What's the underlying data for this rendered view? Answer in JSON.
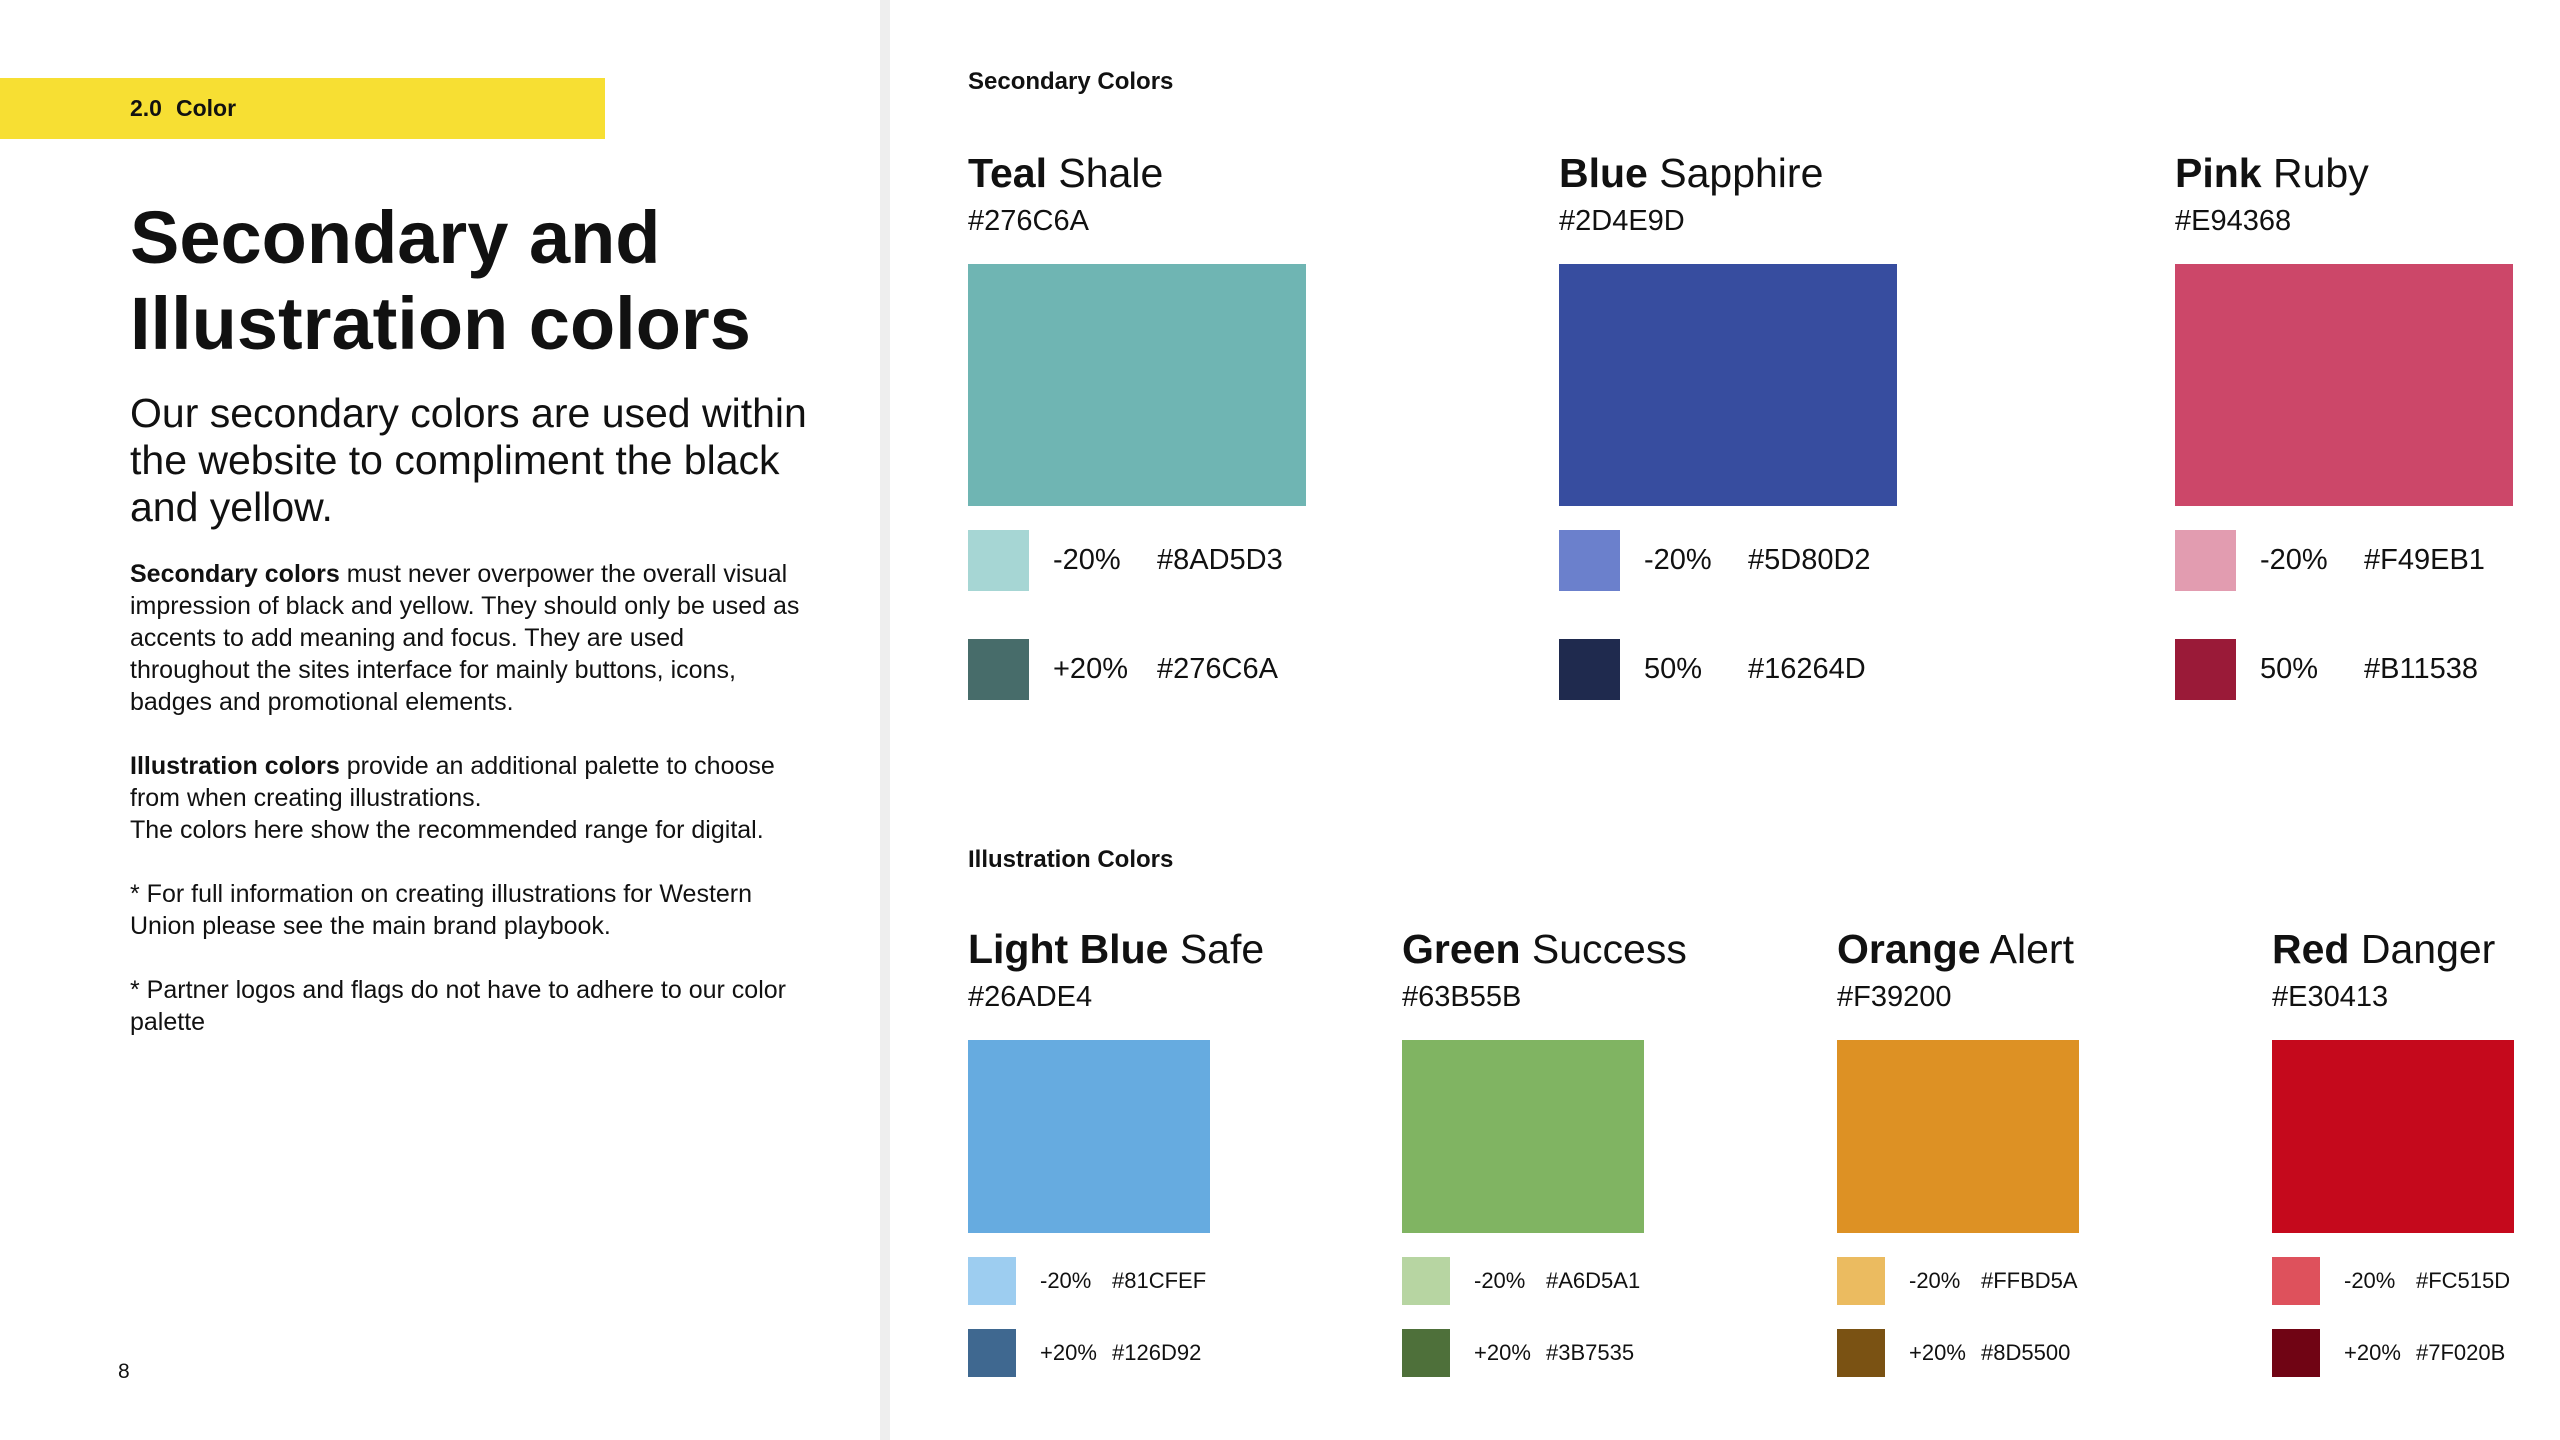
{
  "left": {
    "section_number": "2.0",
    "section_name": "Color",
    "title_line1": "Secondary and",
    "title_line2": "Illustration colors",
    "lead": "Our secondary colors are used within the website to compliment the black and yellow.",
    "para1_bold": "Secondary colors",
    "para1_rest": " must never overpower the overall visual impression of black and yellow. They should only be used as accents to add meaning and focus. They are used throughout the sites interface for mainly buttons, icons, badges and promotional elements.",
    "para2_bold": "Illustration colors",
    "para2_rest": " provide an additional palette to choose from when creating illustrations.",
    "para2_line2": "The colors here show the recommended range for digital.",
    "note1": "* For full information on creating illustrations for Western Union please see the main brand playbook.",
    "note2": "* Partner logos and flags do not have to adhere to our color palette",
    "page_number": "8"
  },
  "secondary": {
    "label": "Secondary Colors",
    "colors": [
      {
        "name_bold": "Teal",
        "name_rest": " Shale",
        "hex": "#276C6A",
        "swatch_color": "#6fb5b3",
        "tints": [
          {
            "pct": "-20%",
            "hex": "#8AD5D3",
            "color": "#a6d6d4"
          },
          {
            "pct": "+20%",
            "hex": "#276C6A",
            "color": "#476c6a"
          }
        ]
      },
      {
        "name_bold": "Blue",
        "name_rest": " Sapphire",
        "hex": "#2D4E9D",
        "swatch_color": "#374d9f",
        "tints": [
          {
            "pct": "-20%",
            "hex": "#5D80D2",
            "color": "#6b80cc"
          },
          {
            "pct": "50%",
            "hex": "#16264D",
            "color": "#1f2a4e"
          }
        ]
      },
      {
        "name_bold": "Pink",
        "name_rest": " Ruby",
        "hex": "#E94368",
        "swatch_color": "#cc4769",
        "tints": [
          {
            "pct": "-20%",
            "hex": "#F49EB1",
            "color": "#e29cb0"
          },
          {
            "pct": "50%",
            "hex": "#B11538",
            "color": "#9a1a38"
          }
        ]
      }
    ]
  },
  "illustration": {
    "label": "Illustration Colors",
    "colors": [
      {
        "name_bold": "Light Blue",
        "name_rest": " Safe",
        "hex": "#26ADE4",
        "swatch_color": "#66abe0",
        "tints": [
          {
            "pct": "-20%",
            "hex": "#81CFEF",
            "color": "#9dcdf0"
          },
          {
            "pct": "+20%",
            "hex": "#126D92",
            "color": "#3f6890"
          }
        ]
      },
      {
        "name_bold": "Green",
        "name_rest": " Success",
        "hex": "#63B55B",
        "swatch_color": "#80b462",
        "tints": [
          {
            "pct": "-20%",
            "hex": "#A6D5A1",
            "color": "#b7d5a2"
          },
          {
            "pct": "+20%",
            "hex": "#3B7535",
            "color": "#4e703a"
          }
        ]
      },
      {
        "name_bold": "Orange",
        "name_rest": " Alert",
        "hex": "#F39200",
        "swatch_color": "#dd9124",
        "tints": [
          {
            "pct": "-20%",
            "hex": "#FFBD5A",
            "color": "#ebbb60"
          },
          {
            "pct": "+20%",
            "hex": "#8D5500",
            "color": "#7a5213"
          }
        ]
      },
      {
        "name_bold": "Red",
        "name_rest": " Danger",
        "hex": "#E30413",
        "swatch_color": "#c5091c",
        "tints": [
          {
            "pct": "-20%",
            "hex": "#FC515D",
            "color": "#de515c"
          },
          {
            "pct": "+20%",
            "hex": "#7F020B",
            "color": "#700414"
          }
        ]
      }
    ]
  }
}
